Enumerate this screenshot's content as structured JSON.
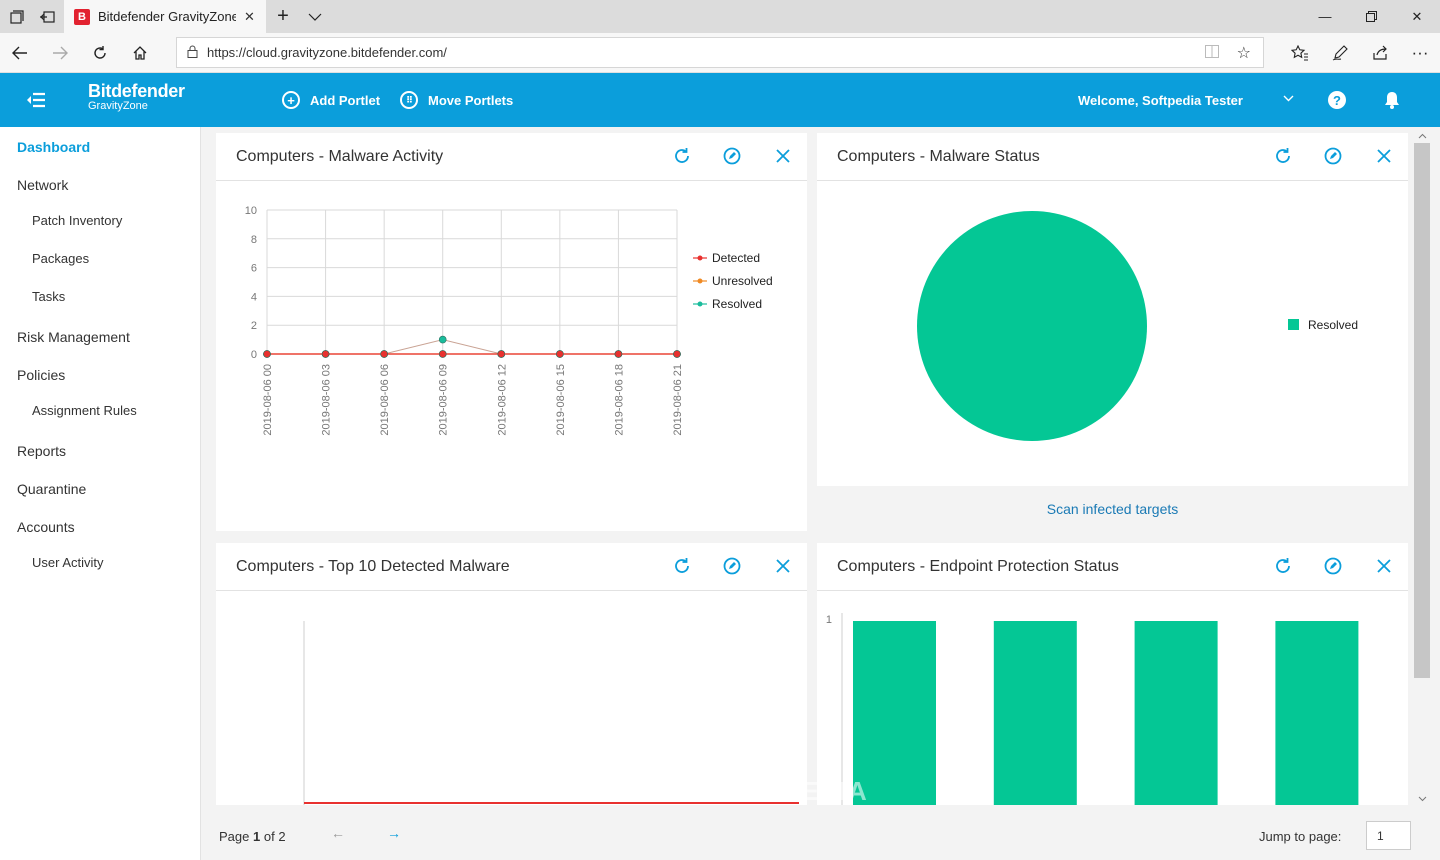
{
  "browser": {
    "tab_title": "Bitdefender GravityZone",
    "tab_favicon": "B",
    "url": "https://cloud.gravityzone.bitdefender.com/"
  },
  "header": {
    "brand": "Bitdefender",
    "product": "GravityZone",
    "add_portlet": "Add Portlet",
    "move_portlets": "Move Portlets",
    "welcome": "Welcome, Softpedia Tester",
    "accent_color": "#0b9edb"
  },
  "sidebar": {
    "items": [
      {
        "label": "Dashboard"
      },
      {
        "label": "Network"
      },
      {
        "label": "Patch Inventory"
      },
      {
        "label": "Packages"
      },
      {
        "label": "Tasks"
      },
      {
        "label": "Risk Management"
      },
      {
        "label": "Policies"
      },
      {
        "label": "Assignment Rules"
      },
      {
        "label": "Reports"
      },
      {
        "label": "Quarantine"
      },
      {
        "label": "Accounts"
      },
      {
        "label": "User Activity"
      }
    ]
  },
  "portlets": {
    "malware_activity": {
      "title": "Computers - Malware Activity"
    },
    "malware_status": {
      "title": "Computers - Malware Status",
      "link": "Scan infected targets"
    },
    "top10": {
      "title": "Computers - Top 10 Detected Malware"
    },
    "endpoint": {
      "title": "Computers - Endpoint Protection Status"
    }
  },
  "chart_data": [
    {
      "type": "line",
      "x": [
        "2019-08-06 00",
        "2019-08-06 03",
        "2019-08-06 06",
        "2019-08-06 09",
        "2019-08-06 12",
        "2019-08-06 15",
        "2019-08-06 18",
        "2019-08-06 21"
      ],
      "series": [
        {
          "name": "Detected",
          "color": "#e8312f",
          "values": [
            0,
            0,
            0,
            0,
            0,
            0,
            0,
            0
          ]
        },
        {
          "name": "Unresolved",
          "color": "#f08a24",
          "values": [
            0,
            0,
            0,
            0,
            0,
            0,
            0,
            0
          ]
        },
        {
          "name": "Resolved",
          "color": "#1abc9c",
          "values": [
            0,
            0,
            0,
            1,
            0,
            0,
            0,
            0
          ]
        }
      ],
      "yticks": [
        "0",
        "2",
        "4",
        "6",
        "8",
        "10"
      ],
      "ylim": [
        0,
        10
      ],
      "legend": "right"
    },
    {
      "type": "pie",
      "slices": [
        {
          "name": "Resolved",
          "value": 100,
          "color": "#04c795"
        }
      ],
      "legend": "right"
    },
    {
      "type": "bar",
      "categories": [
        "",
        "",
        "",
        ""
      ],
      "values": [
        1,
        1,
        1,
        1
      ],
      "color": "#04c795",
      "yticks": [
        "1"
      ]
    }
  ],
  "pagination": {
    "page_label": "Page",
    "current": "1",
    "of_label": "of 2",
    "jump_label": "Jump to page:",
    "jump_value": "1"
  },
  "watermark": "SOFTPEDIA"
}
